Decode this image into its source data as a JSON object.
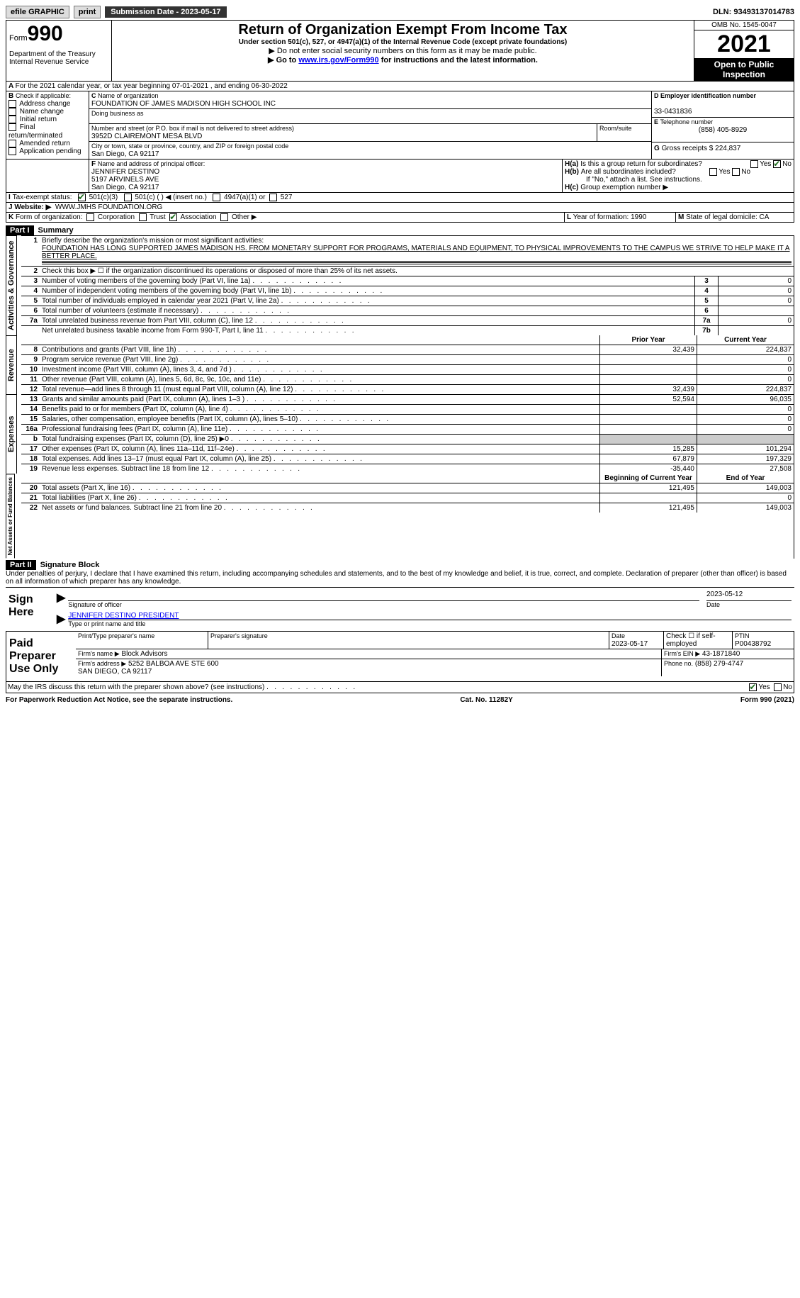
{
  "topbar": {
    "efile": "efile GRAPHIC",
    "print": "print",
    "subdate_label": "Submission Date - ",
    "subdate": "2023-05-17",
    "dln_label": "DLN: ",
    "dln": "93493137014783"
  },
  "header": {
    "form_word": "Form",
    "form_no": "990",
    "dept": "Department of the Treasury\nInternal Revenue Service",
    "title": "Return of Organization Exempt From Income Tax",
    "subtitle": "Under section 501(c), 527, or 4947(a)(1) of the Internal Revenue Code (except private foundations)",
    "note1": "▶ Do not enter social security numbers on this form as it may be made public.",
    "note2_pre": "▶ Go to ",
    "note2_link": "www.irs.gov/Form990",
    "note2_post": " for instructions and the latest information.",
    "omb": "OMB No. 1545-0047",
    "year": "2021",
    "openpub": "Open to Public Inspection"
  },
  "A": {
    "text": "For the 2021 calendar year, or tax year beginning 07-01-2021    , and ending 06-30-2022"
  },
  "B": {
    "label": "Check if applicable:",
    "opts": [
      "Address change",
      "Name change",
      "Initial return",
      "Final return/terminated",
      "Amended return",
      "Application pending"
    ]
  },
  "C": {
    "name_lbl": "Name of organization",
    "name": "FOUNDATION OF JAMES MADISON HIGH SCHOOL INC",
    "dba_lbl": "Doing business as",
    "addr_lbl": "Number and street (or P.O. box if mail is not delivered to street address)",
    "room_lbl": "Room/suite",
    "addr": "3952D CLAIREMONT MESA BLVD",
    "city_lbl": "City or town, state or province, country, and ZIP or foreign postal code",
    "city": "San Diego, CA  92117"
  },
  "D": {
    "lbl": "Employer identification number",
    "val": "33-0431836"
  },
  "E": {
    "lbl": "Telephone number",
    "val": "(858) 405-8929"
  },
  "G": {
    "lbl": "Gross receipts $",
    "val": "224,837"
  },
  "F": {
    "lbl": "Name and address of principal officer:",
    "name": "JENNIFER DESTINO",
    "street": "5197 ARVINELS AVE",
    "city": "San Diego, CA  92117"
  },
  "H": {
    "a": "Is this a group return for subordinates?",
    "b": "Are all subordinates included?",
    "bnote": "If \"No,\" attach a list. See instructions.",
    "c": "Group exemption number ▶",
    "yes": "Yes",
    "no": "No"
  },
  "I": {
    "lbl": "Tax-exempt status:",
    "o1": "501(c)(3)",
    "o2": "501(c) (  ) ◀ (insert no.)",
    "o3": "4947(a)(1) or",
    "o4": "527"
  },
  "J": {
    "lbl": "Website: ▶",
    "val": "WWW.JMHS FOUNDATION.ORG"
  },
  "K": {
    "lbl": "Form of organization:",
    "opts": [
      "Corporation",
      "Trust",
      "Association",
      "Other ▶"
    ],
    "checked": 2
  },
  "L": {
    "lbl": "Year of formation:",
    "val": "1990"
  },
  "M": {
    "lbl": "State of legal domicile:",
    "val": "CA"
  },
  "partI": {
    "bar": "Part I",
    "title": "Summary",
    "l1_lbl": "Briefly describe the organization's mission or most significant activities:",
    "l1": "FOUNDATION HAS LONG SUPPORTED JAMES MADISON HS. FROM MONETARY SUPPORT FOR PROGRAMS, MATERIALS AND EQUIPMENT, TO PHYSICAL IMPROVEMENTS TO THE CAMPUS WE STRIVE TO HELP MAKE IT A BETTER PLACE.",
    "l2": "Check this box ▶ ☐ if the organization discontinued its operations or disposed of more than 25% of its net assets.",
    "sec1": {
      "label": "Activities & Governance",
      "rows": [
        {
          "n": "3",
          "t": "Number of voting members of the governing body (Part VI, line 1a)",
          "box": "3",
          "v": "0"
        },
        {
          "n": "4",
          "t": "Number of independent voting members of the governing body (Part VI, line 1b)",
          "box": "4",
          "v": "0"
        },
        {
          "n": "5",
          "t": "Total number of individuals employed in calendar year 2021 (Part V, line 2a)",
          "box": "5",
          "v": "0"
        },
        {
          "n": "6",
          "t": "Total number of volunteers (estimate if necessary)",
          "box": "6",
          "v": ""
        },
        {
          "n": "7a",
          "t": "Total unrelated business revenue from Part VIII, column (C), line 12",
          "box": "7a",
          "v": "0"
        },
        {
          "n": "",
          "t": "Net unrelated business taxable income from Form 990-T, Part I, line 11",
          "box": "7b",
          "v": ""
        }
      ]
    },
    "pyhead": "Prior Year",
    "cyhead": "Current Year",
    "sec2": {
      "label": "Revenue",
      "rows": [
        {
          "n": "8",
          "t": "Contributions and grants (Part VIII, line 1h)",
          "py": "32,439",
          "cy": "224,837"
        },
        {
          "n": "9",
          "t": "Program service revenue (Part VIII, line 2g)",
          "py": "",
          "cy": "0"
        },
        {
          "n": "10",
          "t": "Investment income (Part VIII, column (A), lines 3, 4, and 7d )",
          "py": "",
          "cy": "0"
        },
        {
          "n": "11",
          "t": "Other revenue (Part VIII, column (A), lines 5, 6d, 8c, 9c, 10c, and 11e)",
          "py": "",
          "cy": "0"
        },
        {
          "n": "12",
          "t": "Total revenue—add lines 8 through 11 (must equal Part VIII, column (A), line 12)",
          "py": "32,439",
          "cy": "224,837"
        }
      ]
    },
    "sec3": {
      "label": "Expenses",
      "rows": [
        {
          "n": "13",
          "t": "Grants and similar amounts paid (Part IX, column (A), lines 1–3 )",
          "py": "52,594",
          "cy": "96,035"
        },
        {
          "n": "14",
          "t": "Benefits paid to or for members (Part IX, column (A), line 4)",
          "py": "",
          "cy": "0"
        },
        {
          "n": "15",
          "t": "Salaries, other compensation, employee benefits (Part IX, column (A), lines 5–10)",
          "py": "",
          "cy": "0"
        },
        {
          "n": "16a",
          "t": "Professional fundraising fees (Part IX, column (A), line 11e)",
          "py": "",
          "cy": "0"
        },
        {
          "n": "b",
          "t": "Total fundraising expenses (Part IX, column (D), line 25) ▶0",
          "py": "",
          "cy": "",
          "shade": true
        },
        {
          "n": "17",
          "t": "Other expenses (Part IX, column (A), lines 11a–11d, 11f–24e)",
          "py": "15,285",
          "cy": "101,294"
        },
        {
          "n": "18",
          "t": "Total expenses. Add lines 13–17 (must equal Part IX, column (A), line 25)",
          "py": "67,879",
          "cy": "197,329"
        },
        {
          "n": "19",
          "t": "Revenue less expenses. Subtract line 18 from line 12",
          "py": "-35,440",
          "cy": "27,508"
        }
      ]
    },
    "bhead": "Beginning of Current Year",
    "ehead": "End of Year",
    "sec4": {
      "label": "Net Assets or Fund Balances",
      "rows": [
        {
          "n": "20",
          "t": "Total assets (Part X, line 16)",
          "py": "121,495",
          "cy": "149,003"
        },
        {
          "n": "21",
          "t": "Total liabilities (Part X, line 26)",
          "py": "",
          "cy": "0"
        },
        {
          "n": "22",
          "t": "Net assets or fund balances. Subtract line 21 from line 20",
          "py": "121,495",
          "cy": "149,003"
        }
      ]
    }
  },
  "partII": {
    "bar": "Part II",
    "title": "Signature Block",
    "decl": "Under penalties of perjury, I declare that I have examined this return, including accompanying schedules and statements, and to the best of my knowledge and belief, it is true, correct, and complete. Declaration of preparer (other than officer) is based on all information of which preparer has any knowledge.",
    "sign_here": "Sign Here",
    "sig_lbl": "Signature of officer",
    "date": "2023-05-12",
    "date_lbl": "Date",
    "name": "JENNIFER DESTINO  PRESIDENT",
    "name_lbl": "Type or print name and title",
    "paid": "Paid Preparer Use Only",
    "pname_lbl": "Print/Type preparer's name",
    "psig_lbl": "Preparer's signature",
    "pdate_lbl": "Date",
    "pdate": "2023-05-17",
    "self_lbl": "Check ☐ if self-employed",
    "ptin_lbl": "PTIN",
    "ptin": "P00438792",
    "firm_lbl": "Firm's name    ▶",
    "firm": "Block Advisors",
    "ein_lbl": "Firm's EIN ▶",
    "ein": "43-1871840",
    "faddr_lbl": "Firm's address ▶",
    "faddr": "5252 BALBOA AVE STE 600\nSAN DIEGO, CA  92117",
    "phone_lbl": "Phone no.",
    "phone": "(858) 279-4747",
    "discuss": "May the IRS discuss this return with the preparer shown above? (see instructions)"
  },
  "footer": {
    "l": "For Paperwork Reduction Act Notice, see the separate instructions.",
    "m": "Cat. No. 11282Y",
    "r": "Form 990 (2021)"
  }
}
